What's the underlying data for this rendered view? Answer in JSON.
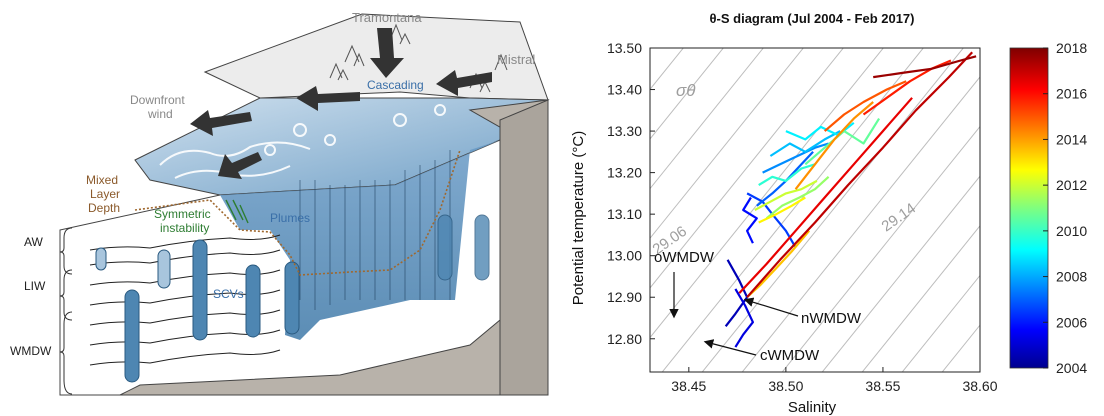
{
  "left_panel": {
    "labels": {
      "tramontana": "Tramontana",
      "mistral": "Mistral",
      "cascading": "Cascading",
      "downfront_wind": [
        "Downfront",
        "wind"
      ],
      "mixed_layer_depth": [
        "Mixed",
        "Layer",
        "Depth"
      ],
      "symmetric_instability": [
        "Symmetric",
        "instability"
      ],
      "plumes": "Plumes",
      "scvs": "SCVs"
    },
    "water_masses": [
      "AW",
      "LIW",
      "WMDW"
    ]
  },
  "right_panel": {
    "chart_data": {
      "type": "scatter",
      "title": "θ-S diagram (Jul 2004 - Feb 2017)",
      "xlabel": "Salinity",
      "ylabel": "Potential temperature (°C)",
      "xlim": [
        38.43,
        38.6
      ],
      "ylim": [
        12.72,
        13.5
      ],
      "x_ticks": [
        "38.45",
        "38.50",
        "38.55",
        "38.60"
      ],
      "y_ticks": [
        "12.80",
        "12.90",
        "13.00",
        "13.10",
        "13.20",
        "13.30",
        "13.40",
        "13.50"
      ],
      "sigma_label": "σθ",
      "isopycnal_labels": [
        "29.06",
        "29.14"
      ],
      "annotations": [
        "oWMDW",
        "nWMDW",
        "cWMDW"
      ],
      "colorbar": {
        "ticks": [
          "2018",
          "2016",
          "2014",
          "2012",
          "2010",
          "2008",
          "2006",
          "2004"
        ],
        "range": [
          2004,
          2018
        ],
        "colormap": "jet"
      },
      "series": [
        {
          "year": 2004.6,
          "x": [
            38.469,
            38.474,
            38.48,
            38.476,
            38.47
          ],
          "y": [
            12.83,
            12.86,
            12.9,
            12.94,
            12.99
          ]
        },
        {
          "year": 2005.2,
          "x": [
            38.474,
            38.478,
            38.483,
            38.479,
            38.474
          ],
          "y": [
            12.78,
            12.81,
            12.84,
            12.88,
            12.92
          ]
        },
        {
          "year": 2005.8,
          "x": [
            38.483,
            38.48,
            38.485,
            38.478,
            38.482
          ],
          "y": [
            13.03,
            13.06,
            13.09,
            13.11,
            13.14
          ]
        },
        {
          "year": 2006.5,
          "x": [
            38.48,
            38.488,
            38.493,
            38.5,
            38.505
          ],
          "y": [
            13.15,
            13.13,
            13.1,
            13.06,
            13.02
          ]
        },
        {
          "year": 2007.0,
          "x": [
            38.485,
            38.493,
            38.5,
            38.508,
            38.514
          ],
          "y": [
            13.12,
            13.15,
            13.18,
            13.22,
            13.25
          ]
        },
        {
          "year": 2007.6,
          "x": [
            38.488,
            38.497,
            38.506,
            38.515,
            38.522
          ],
          "y": [
            13.2,
            13.22,
            13.24,
            13.26,
            13.27
          ]
        },
        {
          "year": 2008.3,
          "x": [
            38.492,
            38.502,
            38.51,
            38.52,
            38.528
          ],
          "y": [
            13.24,
            13.27,
            13.25,
            13.28,
            13.3
          ]
        },
        {
          "year": 2009.0,
          "x": [
            38.5,
            38.51,
            38.518,
            38.527,
            38.535
          ],
          "y": [
            13.3,
            13.28,
            13.31,
            13.29,
            13.32
          ]
        },
        {
          "year": 2009.8,
          "x": [
            38.486,
            38.493,
            38.5,
            38.508,
            38.515
          ],
          "y": [
            13.17,
            13.19,
            13.18,
            13.21,
            13.22
          ]
        },
        {
          "year": 2010.6,
          "x": [
            38.51,
            38.52,
            38.53,
            38.54,
            38.548
          ],
          "y": [
            13.22,
            13.26,
            13.3,
            13.27,
            13.33
          ]
        },
        {
          "year": 2011.3,
          "x": [
            38.49,
            38.498,
            38.507,
            38.515,
            38.522
          ],
          "y": [
            13.09,
            13.12,
            13.14,
            13.16,
            13.19
          ]
        },
        {
          "year": 2012.0,
          "x": [
            38.484,
            38.492,
            38.5,
            38.508,
            38.516
          ],
          "y": [
            13.11,
            13.13,
            13.15,
            13.16,
            13.18
          ]
        },
        {
          "year": 2012.8,
          "x": [
            38.486,
            38.495,
            38.503,
            38.51
          ],
          "y": [
            13.08,
            13.1,
            13.12,
            13.14
          ]
        },
        {
          "year": 2013.5,
          "x": [
            38.48,
            38.487,
            38.495,
            38.503,
            38.512
          ],
          "y": [
            12.9,
            12.93,
            12.97,
            13.01,
            13.06
          ]
        },
        {
          "year": 2014.2,
          "x": [
            38.505,
            38.515,
            38.525,
            38.535,
            38.545
          ],
          "y": [
            13.16,
            13.22,
            13.28,
            13.33,
            13.37
          ]
        },
        {
          "year": 2015.0,
          "x": [
            38.52,
            38.53,
            38.54,
            38.552,
            38.562
          ],
          "y": [
            13.3,
            13.34,
            13.37,
            13.4,
            13.42
          ]
        },
        {
          "year": 2015.8,
          "x": [
            38.54,
            38.552,
            38.564,
            38.575,
            38.585
          ],
          "y": [
            13.34,
            13.38,
            13.42,
            13.45,
            13.47
          ]
        },
        {
          "year": 2016.5,
          "x": [
            38.476,
            38.49,
            38.505,
            38.52,
            38.535,
            38.55,
            38.565
          ],
          "y": [
            12.91,
            12.98,
            13.06,
            13.14,
            13.22,
            13.3,
            13.38
          ]
        },
        {
          "year": 2017.1,
          "x": [
            38.48,
            38.497,
            38.515,
            38.532,
            38.55,
            38.567,
            38.584,
            38.596
          ],
          "y": [
            12.9,
            12.99,
            13.08,
            13.17,
            13.26,
            13.35,
            13.43,
            13.49
          ]
        },
        {
          "year": 2017.6,
          "x": [
            38.545,
            38.56,
            38.575,
            38.59,
            38.598
          ],
          "y": [
            13.43,
            13.44,
            13.45,
            13.47,
            13.48
          ]
        }
      ]
    }
  }
}
